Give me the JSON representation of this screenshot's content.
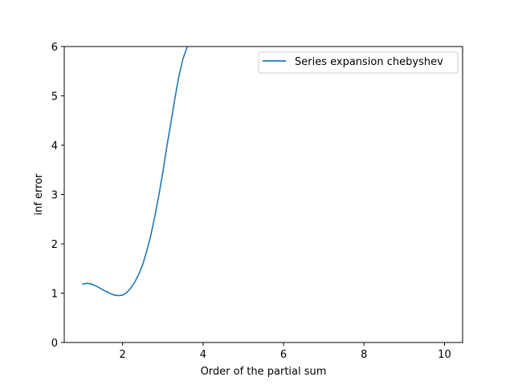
{
  "chart_data": {
    "type": "line",
    "title": "",
    "xlabel": "Order of the partial sum",
    "ylabel": "inf error",
    "xlim": [
      0.55,
      10.45
    ],
    "ylim": [
      0,
      6
    ],
    "xticks": [
      2,
      4,
      6,
      8,
      10
    ],
    "yticks": [
      0,
      1,
      2,
      3,
      4,
      5,
      6
    ],
    "grid": false,
    "legend_position": "top-right",
    "series": [
      {
        "name": "Series expansion chebyshev",
        "color": "#1f77b4",
        "x": [
          1.0,
          1.1,
          1.2,
          1.3,
          1.4,
          1.5,
          1.6,
          1.7,
          1.8,
          1.9,
          2.0,
          2.1,
          2.2,
          2.3,
          2.4,
          2.5,
          2.6,
          2.7,
          2.8,
          2.9,
          3.0,
          3.1,
          3.2,
          3.3,
          3.4,
          3.5,
          3.6,
          3.61
        ],
        "y": [
          1.18,
          1.2,
          1.19,
          1.16,
          1.12,
          1.07,
          1.03,
          0.99,
          0.96,
          0.95,
          0.96,
          1.01,
          1.1,
          1.22,
          1.38,
          1.58,
          1.85,
          2.17,
          2.55,
          2.98,
          3.45,
          3.98,
          4.45,
          4.95,
          5.4,
          5.75,
          5.98,
          6.0
        ]
      }
    ]
  }
}
